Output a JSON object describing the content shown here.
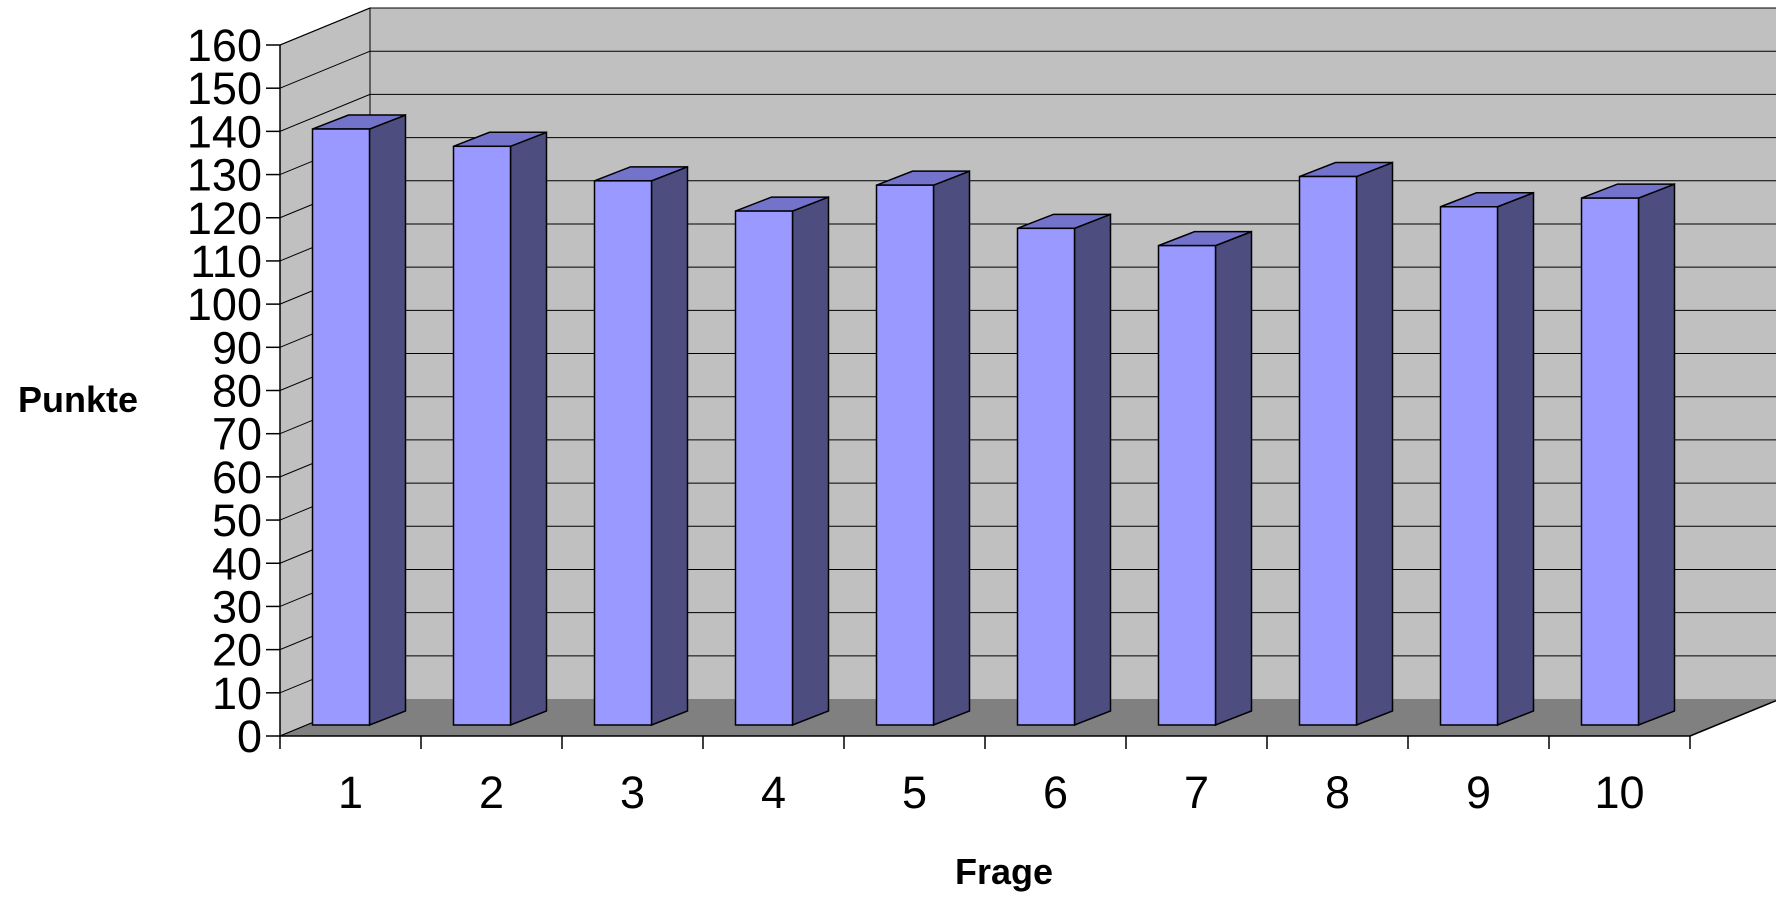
{
  "chart_data": {
    "type": "bar",
    "style": "3d-column",
    "title": "",
    "xlabel": "Frage",
    "ylabel": "Punkte",
    "categories": [
      "1",
      "2",
      "3",
      "4",
      "5",
      "6",
      "7",
      "8",
      "9",
      "10"
    ],
    "values": [
      138,
      134,
      126,
      119,
      125,
      115,
      111,
      127,
      120,
      122
    ],
    "ylim": [
      0,
      160
    ],
    "ytick_step": 10,
    "y_ticks": [
      "0",
      "10",
      "20",
      "30",
      "40",
      "50",
      "60",
      "70",
      "80",
      "90",
      "100",
      "110",
      "120",
      "130",
      "140",
      "150",
      "160"
    ],
    "grid": true,
    "legend": "none",
    "colors": {
      "bar_front": "#9999ff",
      "bar_side": "#4d4d80",
      "bar_top": "#7373cc",
      "back_wall": "#c0c0c0",
      "side_wall": "#c0c0c0",
      "floor": "#808080",
      "gridline": "#000000"
    }
  }
}
